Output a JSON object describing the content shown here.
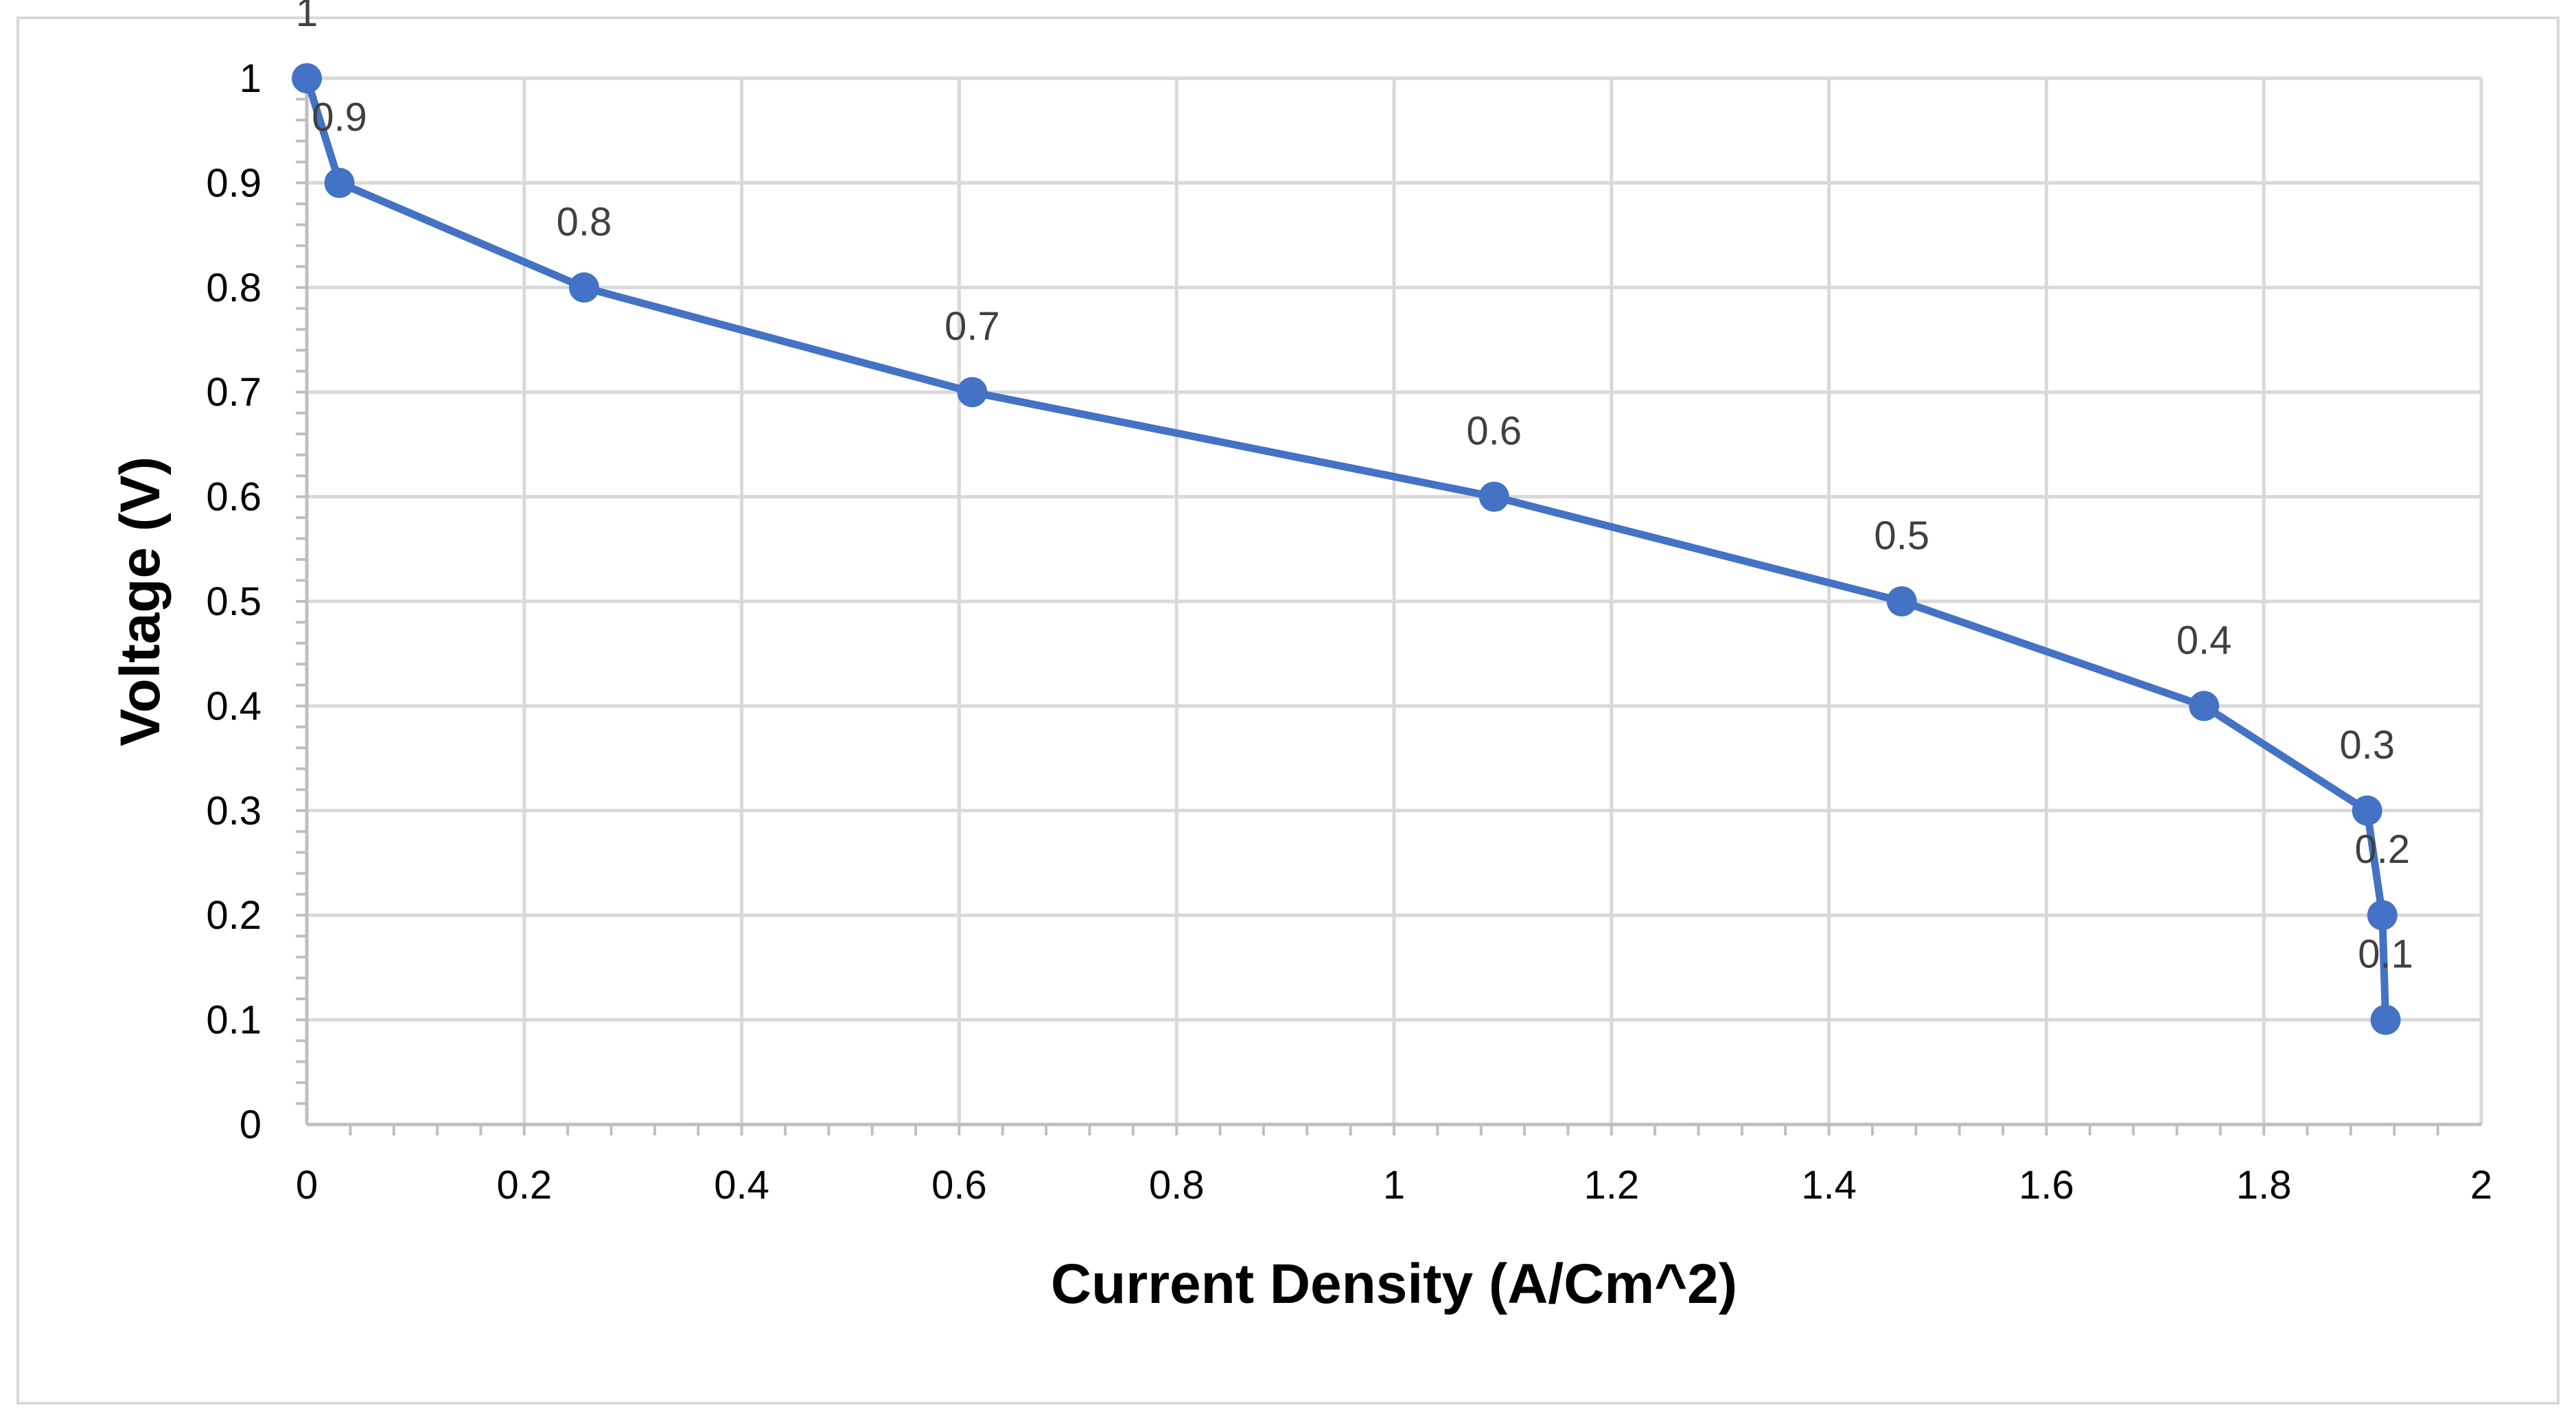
{
  "chart_data": {
    "type": "line",
    "title": "",
    "xlabel": "Current Density (A/Cm^2)",
    "ylabel": "Voltage (V)",
    "xlim": [
      0,
      2
    ],
    "ylim": [
      0,
      1
    ],
    "x_ticks": [
      "0",
      "0.2",
      "0.4",
      "0.6",
      "0.8",
      "1",
      "1.2",
      "1.4",
      "1.6",
      "1.8",
      "2"
    ],
    "y_ticks": [
      "0",
      "0.1",
      "0.2",
      "0.3",
      "0.4",
      "0.5",
      "0.6",
      "0.7",
      "0.8",
      "0.9",
      "1"
    ],
    "x_tick_values": [
      0,
      0.2,
      0.4,
      0.6,
      0.8,
      1,
      1.2,
      1.4,
      1.6,
      1.8,
      2
    ],
    "y_tick_values": [
      0,
      0.1,
      0.2,
      0.3,
      0.4,
      0.5,
      0.6,
      0.7,
      0.8,
      0.9,
      1
    ],
    "grid": true,
    "legend": "none",
    "series": [
      {
        "color": "#4472c4",
        "x": [
          0,
          0.03,
          0.255,
          0.612,
          1.092,
          1.467,
          1.745,
          1.895,
          1.909,
          1.912
        ],
        "y": [
          1,
          0.9,
          0.8,
          0.7,
          0.6,
          0.5,
          0.4,
          0.3,
          0.2,
          0.1
        ],
        "data_labels": [
          "1",
          "0.9",
          "0.8",
          "0.7",
          "0.6",
          "0.5",
          "0.4",
          "0.3",
          "0.2",
          "0.1"
        ]
      }
    ]
  }
}
